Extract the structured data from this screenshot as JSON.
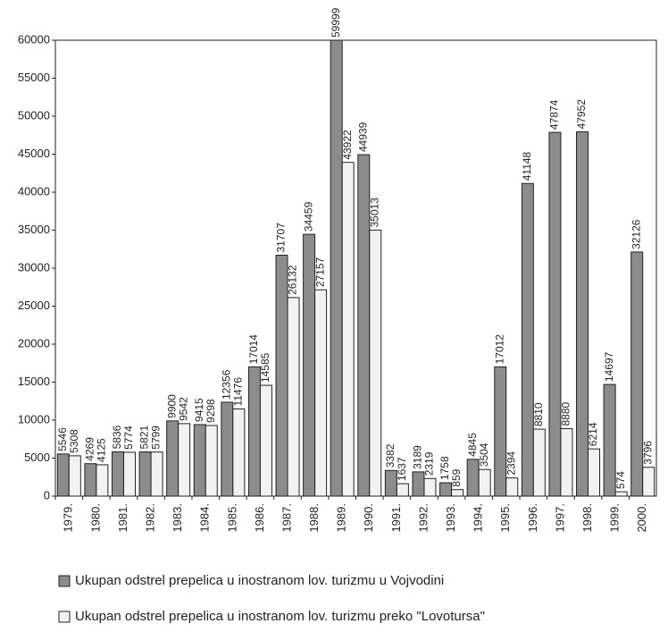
{
  "chart_data": {
    "type": "bar",
    "categories": [
      "1979.",
      "1980.",
      "1981.",
      "1982.",
      "1983.",
      "1984.",
      "1985.",
      "1986.",
      "1987.",
      "1988.",
      "1989.",
      "1990.",
      "1991.",
      "1992.",
      "1993.",
      "1994.",
      "1995.",
      "1996.",
      "1997.",
      "1998.",
      "1999.",
      "2000."
    ],
    "series": [
      {
        "name": "Ukupan odstrel prepelica u inostranom lov. turizmu u Vojvodini",
        "color": "#8c8c8c",
        "values": [
          5546,
          4269,
          5836,
          5821,
          9900,
          9415,
          12356,
          17014,
          31707,
          34459,
          59999,
          44939,
          3382,
          3189,
          1758,
          4845,
          17012,
          41148,
          47874,
          47952,
          14697,
          32126
        ]
      },
      {
        "name": "Ukupan odstrel prepelica u inostranom lov. turizmu preko \"Lovotursa\"",
        "color": "#f2f2f2",
        "values": [
          5308,
          4125,
          5774,
          5799,
          9542,
          9298,
          11476,
          14585,
          26132,
          27157,
          43922,
          35013,
          1637,
          2319,
          859,
          3504,
          2394,
          8810,
          8880,
          6214,
          574,
          3796
        ]
      }
    ],
    "ylim": [
      0,
      60000
    ],
    "yticks": [
      0,
      5000,
      10000,
      15000,
      20000,
      25000,
      30000,
      35000,
      40000,
      45000,
      50000,
      55000,
      60000
    ],
    "grid": false
  }
}
